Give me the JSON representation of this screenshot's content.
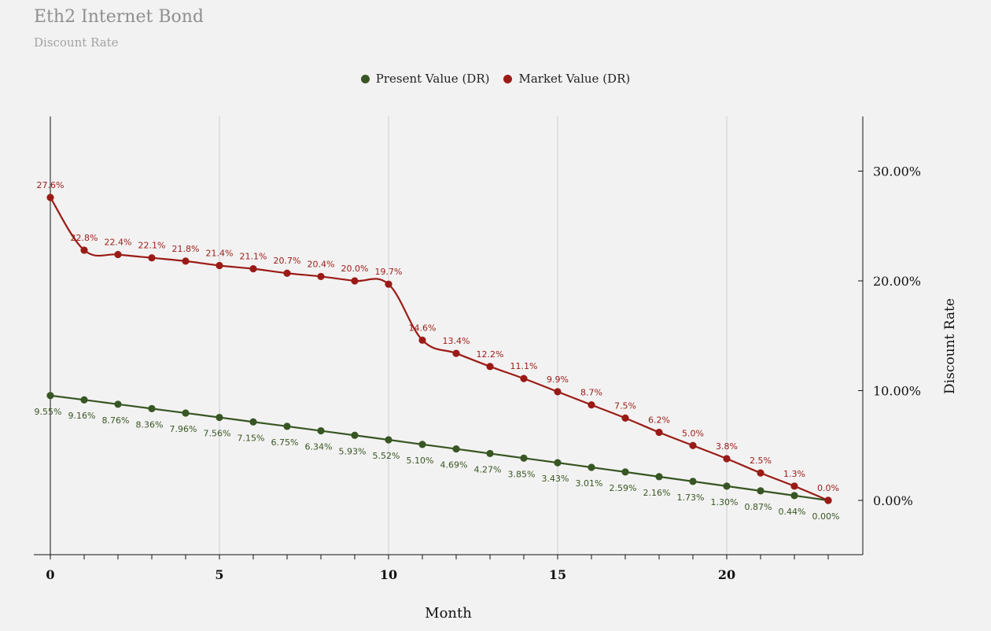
{
  "colors": {
    "present": "#375623",
    "market": "#9a1b16",
    "grid": "#cfcfcf",
    "axis": "#111111"
  },
  "chart_data": {
    "type": "line",
    "title": "Eth2 Internet Bond",
    "subtitle": "Discount Rate",
    "xlabel": "Month",
    "ylabel": "Discount Rate",
    "xlim": [
      0,
      23
    ],
    "ylim": [
      -0.05,
      0.35
    ],
    "x_ticks": [
      "0",
      "5",
      "10",
      "15",
      "20"
    ],
    "y_ticks": [
      "0.00%",
      "10.00%",
      "20.00%",
      "30.00%"
    ],
    "legend_position": "top-center",
    "x": [
      0,
      1,
      2,
      3,
      4,
      5,
      6,
      7,
      8,
      9,
      10,
      11,
      12,
      13,
      14,
      15,
      16,
      17,
      18,
      19,
      20,
      21,
      22,
      23
    ],
    "series": [
      {
        "name": "Present Value (DR)",
        "color": "#375623",
        "values": [
          0.0955,
          0.0916,
          0.0876,
          0.0836,
          0.0796,
          0.0756,
          0.0715,
          0.0675,
          0.0634,
          0.0593,
          0.0552,
          0.051,
          0.0469,
          0.0427,
          0.0385,
          0.0343,
          0.0301,
          0.0259,
          0.0216,
          0.0173,
          0.013,
          0.0087,
          0.0044,
          0.0
        ],
        "labels": [
          "9.55%",
          "9.16%",
          "8.76%",
          "8.36%",
          "7.96%",
          "7.56%",
          "7.15%",
          "6.75%",
          "6.34%",
          "5.93%",
          "5.52%",
          "5.10%",
          "4.69%",
          "4.27%",
          "3.85%",
          "3.43%",
          "3.01%",
          "2.59%",
          "2.16%",
          "1.73%",
          "1.30%",
          "0.87%",
          "0.44%",
          "0.00%"
        ]
      },
      {
        "name": "Market Value (DR)",
        "color": "#9a1b16",
        "values": [
          0.276,
          0.228,
          0.224,
          0.221,
          0.218,
          0.214,
          0.211,
          0.207,
          0.204,
          0.2,
          0.197,
          0.146,
          0.134,
          0.122,
          0.111,
          0.099,
          0.087,
          0.075,
          0.062,
          0.05,
          0.038,
          0.025,
          0.013,
          0.0
        ],
        "labels": [
          "27.6%",
          "22.8%",
          "22.4%",
          "22.1%",
          "21.8%",
          "21.4%",
          "21.1%",
          "20.7%",
          "20.4%",
          "20.0%",
          "19.7%",
          "14.6%",
          "13.4%",
          "12.2%",
          "11.1%",
          "9.9%",
          "8.7%",
          "7.5%",
          "6.2%",
          "5.0%",
          "3.8%",
          "2.5%",
          "1.3%",
          "0.0%"
        ]
      }
    ]
  }
}
